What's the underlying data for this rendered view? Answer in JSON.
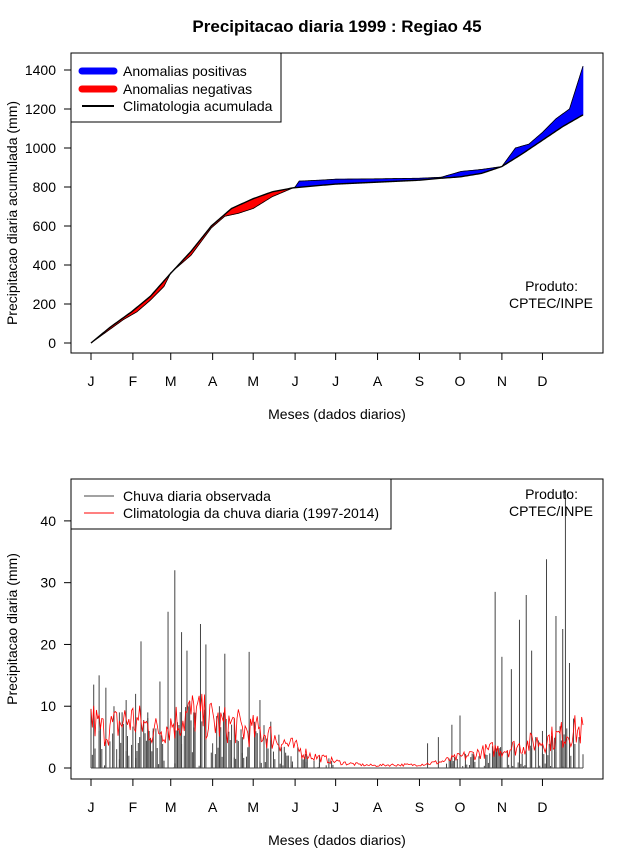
{
  "title": "Precipitacao diaria 1999 : Regiao 45",
  "product_line1": "Produto:",
  "product_line2": "CPTEC/INPE",
  "colors": {
    "positive": "#0000ff",
    "negative": "#ff0000",
    "climatology_line": "#000000",
    "observed_bars": "#444444",
    "daily_climatology": "#ff0000"
  },
  "chart_data": [
    {
      "type": "area",
      "name": "accumulated",
      "title": "Precipitacao diaria 1999 : Regiao 45",
      "xlabel": "Meses (dados diarios)",
      "ylabel": "Precipitacao diaria acumulada (mm)",
      "month_ticks": [
        "J",
        "F",
        "M",
        "A",
        "M",
        "J",
        "J",
        "A",
        "S",
        "O",
        "N",
        "D"
      ],
      "month_start_days": [
        1,
        32,
        60,
        91,
        121,
        152,
        182,
        213,
        244,
        274,
        305,
        335
      ],
      "xlim": [
        1,
        365
      ],
      "ylim": [
        0,
        1400
      ],
      "y_ticks": [
        0,
        200,
        400,
        600,
        800,
        1000,
        1200,
        1400
      ],
      "legend": [
        "Anomalias positivas",
        "Anomalias negativas",
        "Climatologia acumulada"
      ],
      "legend_position": "top-left",
      "observed_points_day": [
        1,
        15,
        25,
        35,
        45,
        55,
        60,
        75,
        90,
        100,
        110,
        121,
        135,
        152,
        155,
        170,
        182,
        213,
        244,
        260,
        275,
        290,
        305,
        315,
        325,
        335,
        345,
        355,
        365
      ],
      "observed_points_mm": [
        0,
        70,
        120,
        160,
        220,
        290,
        360,
        450,
        590,
        650,
        665,
        690,
        750,
        800,
        830,
        835,
        840,
        842,
        845,
        850,
        880,
        890,
        905,
        1000,
        1020,
        1080,
        1150,
        1200,
        1420
      ],
      "climatology_points_day": [
        1,
        15,
        31,
        45,
        59,
        75,
        90,
        105,
        121,
        135,
        150,
        165,
        182,
        213,
        244,
        260,
        274,
        290,
        305,
        320,
        335,
        350,
        365
      ],
      "climatology_points_mm": [
        0,
        80,
        160,
        240,
        350,
        470,
        600,
        690,
        740,
        775,
        795,
        805,
        815,
        825,
        835,
        845,
        852,
        870,
        905,
        970,
        1040,
        1110,
        1170
      ]
    },
    {
      "type": "bar",
      "name": "daily",
      "xlabel": "Meses (dados diarios)",
      "ylabel": "Precipitacao diaria (mm)",
      "month_ticks": [
        "J",
        "F",
        "M",
        "A",
        "M",
        "J",
        "J",
        "A",
        "S",
        "O",
        "N",
        "D"
      ],
      "month_start_days": [
        1,
        32,
        60,
        91,
        121,
        152,
        182,
        213,
        244,
        274,
        305,
        335
      ],
      "xlim": [
        1,
        365
      ],
      "ylim": [
        0,
        45
      ],
      "y_ticks": [
        0,
        10,
        20,
        30,
        40
      ],
      "legend": [
        "Chuva diaria observada",
        "Climatologia da chuva diaria (1997-2014)"
      ],
      "legend_position": "top-left",
      "rain_peaks_day": [
        3,
        7,
        12,
        18,
        22,
        27,
        34,
        38,
        43,
        47,
        52,
        58,
        63,
        68,
        72,
        77,
        82,
        86,
        91,
        96,
        100,
        107,
        113,
        118,
        126,
        129,
        134,
        146,
        150,
        160,
        170,
        180,
        250,
        258,
        268,
        274,
        278,
        300,
        305,
        312,
        318,
        323,
        327,
        330,
        335,
        338,
        345,
        350,
        352,
        355,
        358,
        362
      ],
      "rain_peaks_mm": [
        13.5,
        15,
        13,
        10,
        9,
        11,
        12,
        20.5,
        9,
        6,
        14,
        25.3,
        32,
        22,
        19,
        9,
        23.3,
        20,
        4,
        10,
        18.5,
        8,
        5,
        18.8,
        11,
        6,
        7.5,
        2,
        0.5,
        1,
        0.8,
        0.5,
        4,
        5,
        7,
        8.5,
        0.5,
        28.5,
        18,
        16,
        24,
        28,
        19,
        5,
        6,
        33.8,
        24.6,
        22.5,
        45,
        17,
        8,
        5
      ],
      "climatology_daily_mean_mm": [
        8,
        6,
        7,
        8,
        7,
        6,
        7,
        8,
        9,
        8,
        7,
        7,
        6,
        6,
        5,
        4,
        3,
        2,
        1.5,
        1,
        0.7,
        0.5,
        0.4,
        0.5,
        0.5,
        0.5,
        0.7,
        1,
        1.5,
        2,
        2.5,
        3,
        3,
        3.5,
        4,
        4.5,
        5,
        6,
        6
      ]
    }
  ]
}
